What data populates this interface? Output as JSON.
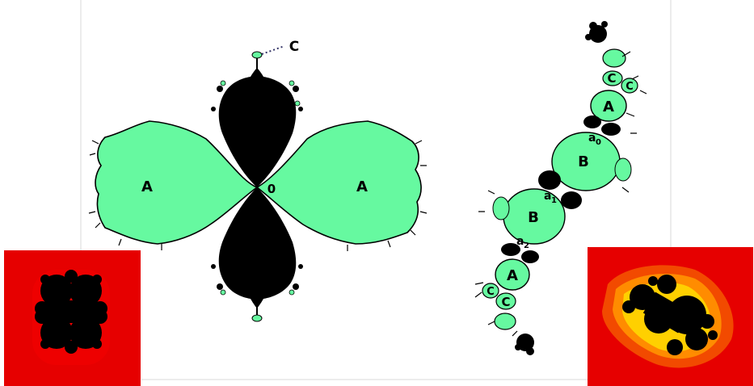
{
  "labels": {
    "left_A_1": "A",
    "left_A_2": "A",
    "left_zero": "0",
    "left_C": "C",
    "right_A_top": "A",
    "right_C_top_1": "C",
    "right_C_top_2": "C",
    "right_B_top": "B",
    "right_B_bottom": "B",
    "right_A_bottom": "A",
    "right_C_bottom_1": "C",
    "right_C_bottom_2": "C",
    "a0_base": "a",
    "a0_sub": "0",
    "a1_base": "a",
    "a1_sub": "1",
    "a2_base": "a",
    "a2_sub": "2"
  },
  "colors": {
    "basin_fill": "#66f9a0",
    "julia_black": "#000000",
    "inset_red": "#e60000",
    "inset_orange": "#ff8c00",
    "inset_yellow": "#ffe000",
    "frame_line": "#d8d8d8"
  }
}
